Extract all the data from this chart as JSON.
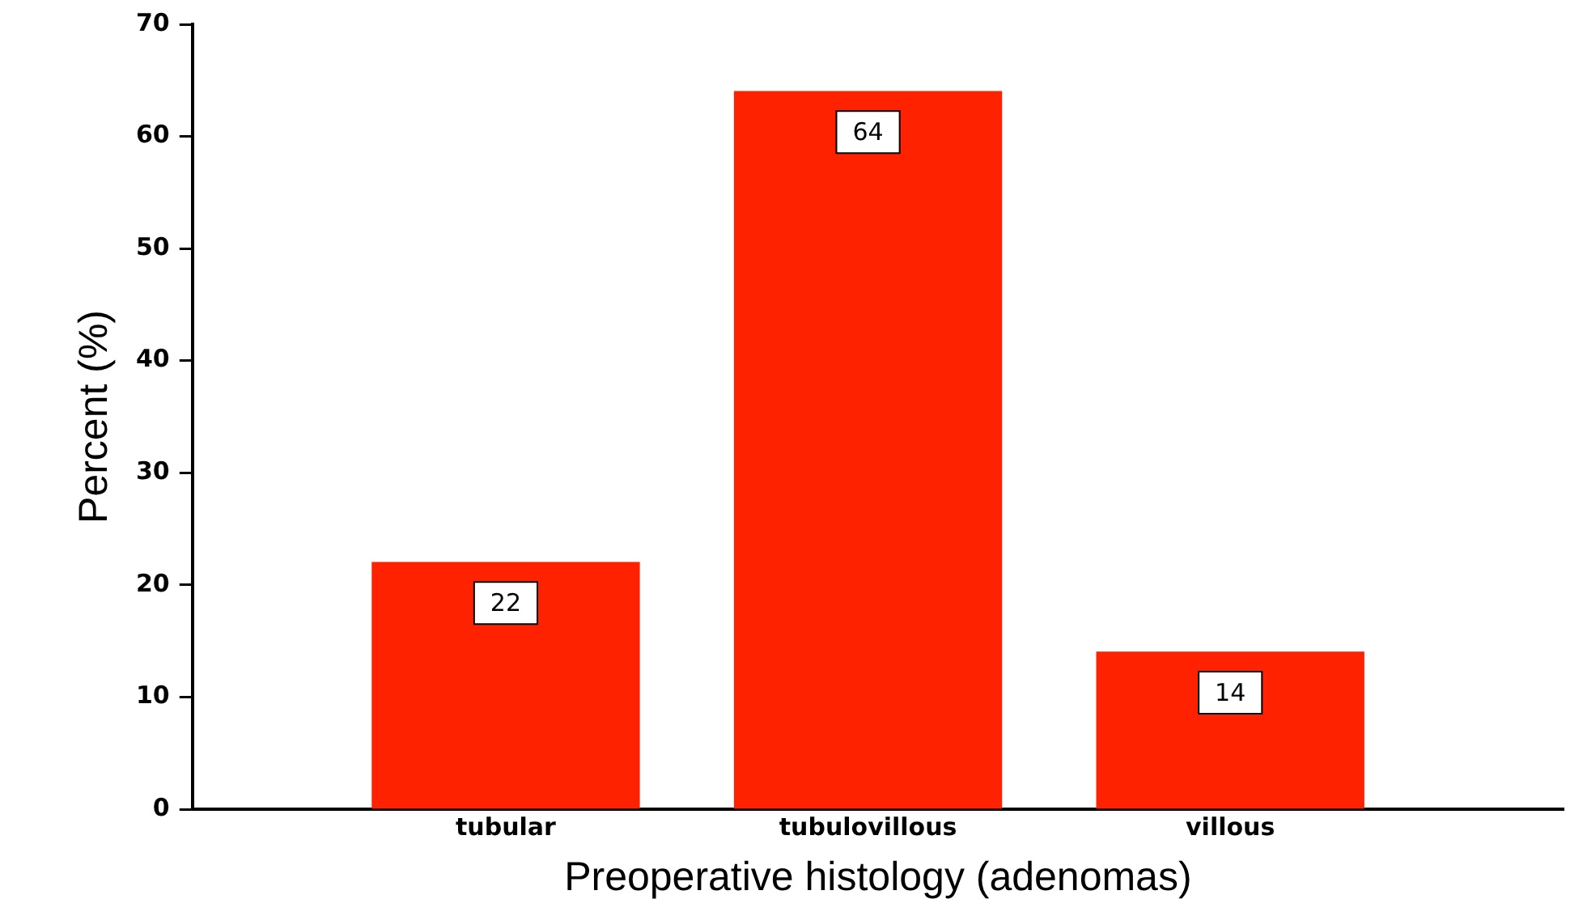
{
  "chart_data": {
    "type": "bar",
    "xlabel": "Preoperative histology (adenomas)",
    "ylabel": "Percent (%)",
    "categories": [
      "tubular",
      "tubulovillous",
      "villous"
    ],
    "values": [
      22,
      64,
      14
    ],
    "color": "#ff2200",
    "ylim": [
      0,
      70
    ],
    "yticks": [
      0,
      10,
      20,
      30,
      40,
      50,
      60,
      70
    ],
    "grid": false,
    "data_labels": true,
    "legend": false
  }
}
